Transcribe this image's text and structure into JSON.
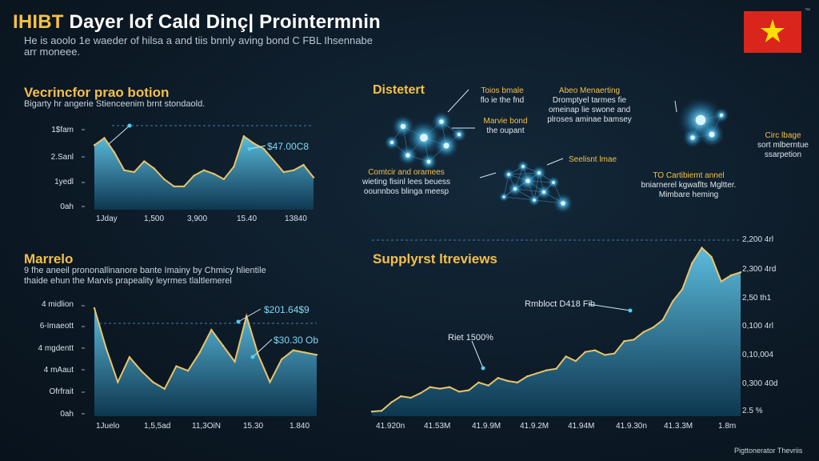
{
  "header": {
    "title_highlight": "IHIBT",
    "title_rest": " Dayer lof Cald Dinç| Prointermnin",
    "subtitle": "He is aoolo 1e waeder of hilsa a and tiis bnnly aving bond C FBL Ihsennabe arr moneee."
  },
  "flag": {
    "colors": {
      "field": "#da251d",
      "star": "#ffde00"
    },
    "icon": "vietnam-flag-icon",
    "tm": "™"
  },
  "colors": {
    "accent": "#f5c046",
    "line": "#e9c46a",
    "fill_top": "#5fc4e6",
    "fill_bottom": "#0e3a55",
    "callout": "#7fd8f5"
  },
  "panels": {
    "top_left": {
      "title": "Vecrincfor prao botion",
      "desc": "Bigarty hr angerie Stienceenim brnt stondaold.",
      "callout": "$47.00C8"
    },
    "bottom_left": {
      "title": "Marrelo",
      "desc": "9 fhe aneeil prononallinanore bante Imainy by Chmicy hlientile thaide ehun the Marvis prapeality leyrmes tlaltlemerel",
      "callouts": [
        "$201.64$9",
        "$30.30 Ob"
      ]
    },
    "bottom_right": {
      "title": "Supplyrst ltreviews",
      "annotations": [
        "Rmbloct D418 Fib",
        "Riet 1500%"
      ]
    },
    "network": {
      "title": "Distetert",
      "labels": [
        {
          "head": "Toios bmale",
          "body": "flo ie the fnd"
        },
        {
          "head": "Abeo Menaerting",
          "body": "Dromptyel tarmes fie omeinap lie swone and plroses aminae bamsey"
        },
        {
          "head": "Marvie bond",
          "body": "the oupant"
        },
        {
          "head": "Circ lbage",
          "body": "sort mlberntue ssarpetion"
        },
        {
          "head": "Comtcir and oramees",
          "body": "wieting fisinl lees beuess oounnbos blinga meesp"
        },
        {
          "head": "Seelisnt lmae",
          "body": ""
        },
        {
          "head": "TO Cartibiemt annel",
          "body": "bniarnerel kgwaflts Mgltter. Mimbare heming"
        }
      ]
    }
  },
  "chart_data": [
    {
      "type": "area",
      "title": "Vecrincfor prao botion",
      "y_tick_labels": [
        "1$fam",
        "2.Sanl",
        "1yedl",
        "0ah"
      ],
      "x_tick_labels": [
        "1Jday",
        "1,500",
        "3,900",
        "15.40",
        "13840"
      ],
      "series": [
        {
          "values": [
            72,
            80,
            64,
            44,
            42,
            54,
            46,
            34,
            26,
            26,
            38,
            44,
            40,
            34,
            48,
            82,
            74,
            68,
            55,
            42,
            44,
            50,
            36
          ]
        }
      ],
      "ylim": [
        0,
        100
      ],
      "grid": true
    },
    {
      "type": "area",
      "title": "Marrelo",
      "y_tick_labels": [
        "4 midlion",
        "6-Imaeott",
        "4 mgdentt",
        "4 mAaut",
        "Ofrfrait",
        "0ah"
      ],
      "x_tick_labels": [
        "1Juelo",
        "1,5,5ad",
        "11,3OiN",
        "15.30",
        "1.840"
      ],
      "series": [
        {
          "values": [
            95,
            60,
            30,
            52,
            40,
            30,
            24,
            44,
            40,
            56,
            76,
            62,
            48,
            88,
            54,
            30,
            50,
            58,
            56,
            54
          ]
        }
      ],
      "ylim": [
        0,
        100
      ],
      "grid": true
    },
    {
      "type": "area",
      "title": "Supplyrst ltreviews",
      "y_tick_labels": [
        "2,200 4rl",
        "2,300 4rd",
        "2,50 th1",
        "0,100 4rl",
        "0,10,004",
        "0,300 40d",
        "2.5 %"
      ],
      "x_tick_labels": [
        "41.920n",
        "41.53M",
        "41.9.9M",
        "41.9.2M",
        "41.94M",
        "41.9.30n",
        "41.3.3M",
        "1.8m"
      ],
      "series": [
        {
          "values": [
            6,
            7,
            18,
            26,
            24,
            30,
            38,
            36,
            38,
            32,
            34,
            44,
            40,
            50,
            46,
            44,
            52,
            56,
            60,
            62,
            78,
            72,
            84,
            86,
            80,
            82,
            98,
            100,
            110,
            116,
            126,
            150,
            166,
            200,
            220,
            208,
            176,
            184,
            188
          ]
        }
      ],
      "ylim": [
        0,
        230
      ],
      "grid": true
    }
  ],
  "footer": "Pigttonerator Thevriis"
}
